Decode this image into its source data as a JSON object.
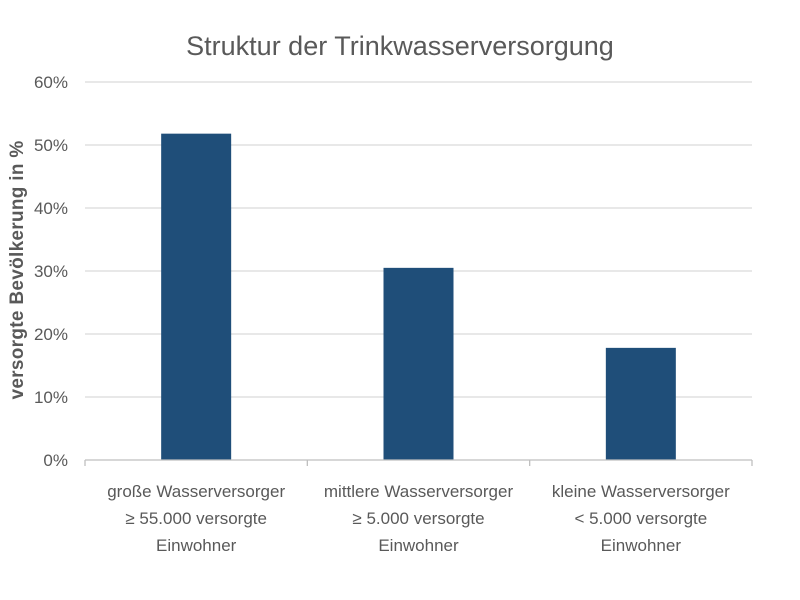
{
  "chart_data": {
    "type": "bar",
    "title": "Struktur der Trinkwasserversorgung",
    "xlabel": "",
    "ylabel": "versorgte Bevölkerung in %",
    "categories": [
      [
        "große Wasserversorger",
        "≥ 55.000 versorgte",
        "Einwohner"
      ],
      [
        "mittlere Wasserversorger",
        "≥ 5.000 versorgte",
        "Einwohner"
      ],
      [
        "kleine Wasserversorger",
        "< 5.000 versorgte",
        "Einwohner"
      ]
    ],
    "values": [
      51.8,
      30.5,
      17.8
    ],
    "ylim": [
      0,
      60
    ],
    "yticks": [
      0,
      10,
      20,
      30,
      40,
      50,
      60
    ],
    "ytick_labels": [
      "0%",
      "10%",
      "20%",
      "30%",
      "40%",
      "50%",
      "60%"
    ],
    "grid": true,
    "bar_color": "#1f4e79"
  }
}
